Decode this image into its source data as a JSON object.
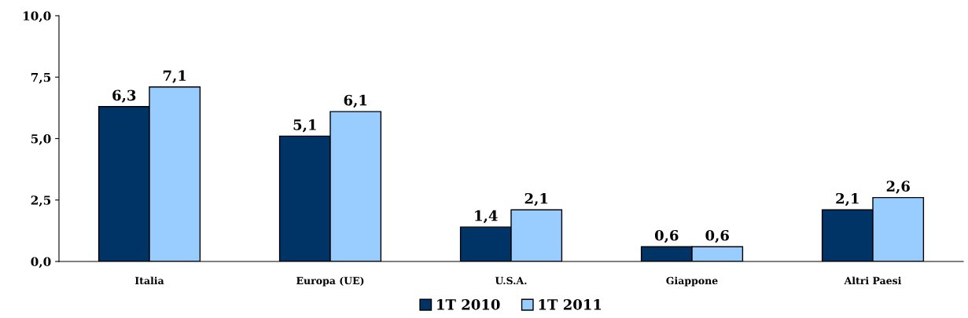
{
  "chart_data": {
    "type": "bar",
    "categories": [
      "Italia",
      "Europa (UE)",
      "U.S.A.",
      "Giappone",
      "Altri Paesi"
    ],
    "series": [
      {
        "name": "1T 2010",
        "color": "#003366",
        "values": [
          6.3,
          5.1,
          1.4,
          0.6,
          2.1
        ],
        "value_labels": [
          "6,3",
          "5,1",
          "1,4",
          "0,6",
          "2,1"
        ]
      },
      {
        "name": "1T 2011",
        "color": "#99ccff",
        "values": [
          7.1,
          6.1,
          2.1,
          0.6,
          2.6
        ],
        "value_labels": [
          "7,1",
          "6,1",
          "2,1",
          "0,6",
          "2,6"
        ]
      }
    ],
    "ylim": [
      0,
      10
    ],
    "yticks": [
      {
        "value": 0,
        "label": "0,0"
      },
      {
        "value": 2.5,
        "label": "2,5"
      },
      {
        "value": 5,
        "label": "5,0"
      },
      {
        "value": 7.5,
        "label": "7,5"
      },
      {
        "value": 10,
        "label": "10,0"
      }
    ],
    "grid": false,
    "legend": "bottom"
  }
}
